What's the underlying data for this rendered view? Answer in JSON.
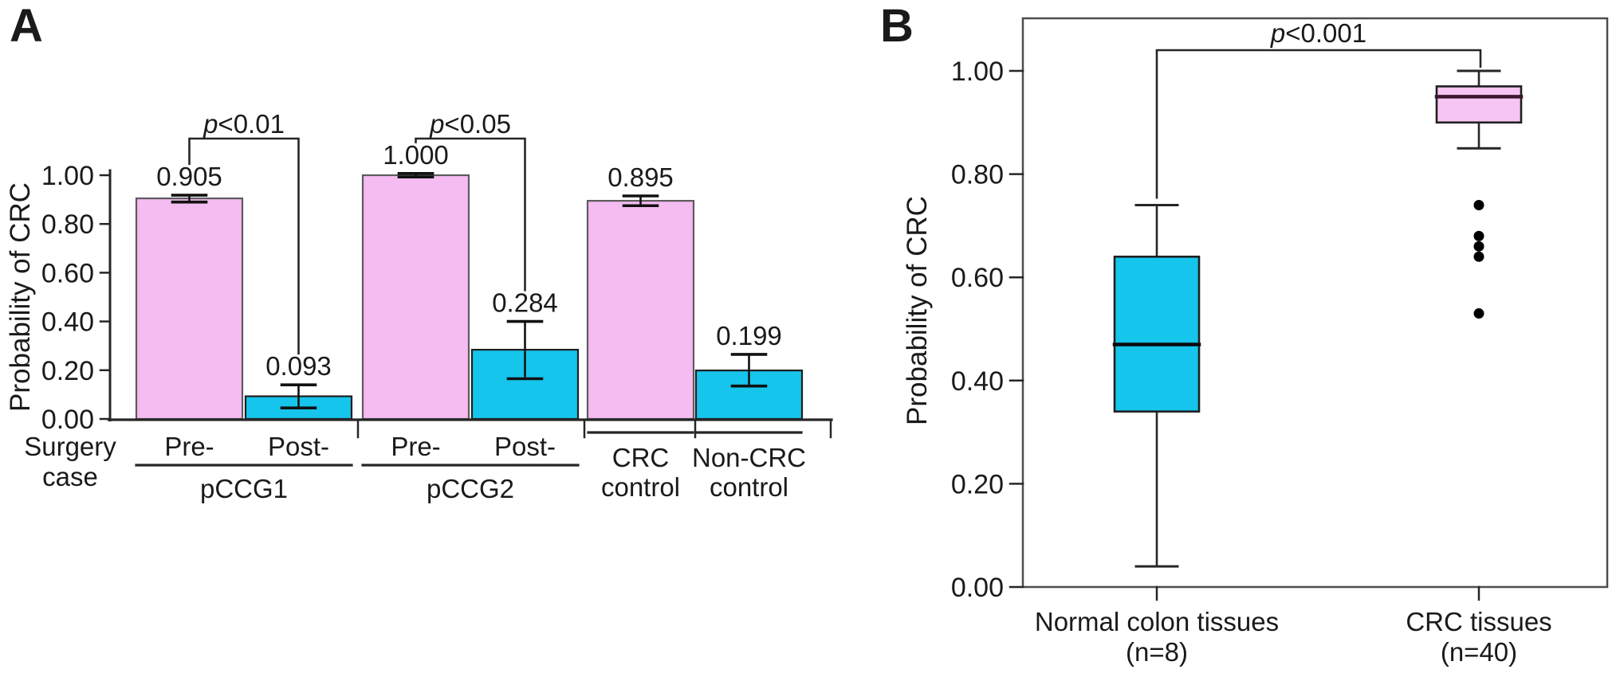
{
  "panel_a": {
    "letter": "A",
    "y_axis_title": "Probability of CRC"
  },
  "panel_b": {
    "letter": "B",
    "y_axis_title": "Probability of CRC"
  },
  "chart_data": [
    {
      "panel": "A",
      "type": "bar",
      "ylabel": "Probability of CRC",
      "ylim": [
        0,
        1.0
      ],
      "ytick_labels": [
        "0.00",
        "0.20",
        "0.40",
        "0.60",
        "0.80",
        "1.00"
      ],
      "categories": [
        "Pre-",
        "Post-",
        "Pre-",
        "Post-",
        "CRC control",
        "Non-CRC control"
      ],
      "values": [
        0.905,
        0.093,
        1.0,
        0.284,
        0.895,
        0.199
      ],
      "value_labels": [
        "0.905",
        "0.093",
        "1.000",
        "0.284",
        "0.895",
        "0.199"
      ],
      "errors": [
        [
          0.89,
          0.918
        ],
        [
          0.045,
          0.14
        ],
        [
          0.993,
          1.007
        ],
        [
          0.165,
          0.4
        ],
        [
          0.875,
          0.915
        ],
        [
          0.135,
          0.265
        ]
      ],
      "bar_colors": [
        "pink",
        "cyan",
        "pink",
        "cyan",
        "pink",
        "cyan"
      ],
      "x_tick_labels": [
        "Pre-",
        "Post-",
        "Pre-",
        "Post-"
      ],
      "groups": [
        {
          "label": "pCCG1",
          "bars": [
            0,
            1
          ]
        },
        {
          "label": "pCCG2",
          "bars": [
            2,
            3
          ]
        }
      ],
      "control_labels": [
        [
          "CRC",
          "control"
        ],
        [
          "Non-CRC",
          "control"
        ]
      ],
      "row_header_lines": [
        "Surgery",
        "case"
      ],
      "significance": [
        {
          "label": "p<0.01",
          "between": [
            0,
            1
          ]
        },
        {
          "label": "p<0.05",
          "between": [
            2,
            3
          ]
        }
      ]
    },
    {
      "panel": "B",
      "type": "box",
      "ylabel": "Probability of CRC",
      "ylim": [
        0,
        1.0
      ],
      "ytick_labels": [
        "0.00",
        "0.20",
        "0.40",
        "0.60",
        "0.80",
        "1.00"
      ],
      "boxes": [
        {
          "label_lines": [
            "Normal colon tissues",
            "(n=8)"
          ],
          "whisker_low": 0.04,
          "q1": 0.34,
          "median": 0.47,
          "q3": 0.64,
          "whisker_high": 0.74,
          "outliers": [],
          "color": "cyan"
        },
        {
          "label_lines": [
            "CRC tissues",
            "(n=40)"
          ],
          "whisker_low": 0.85,
          "q1": 0.9,
          "median": 0.95,
          "q3": 0.97,
          "whisker_high": 1.0,
          "outliers": [
            0.74,
            0.68,
            0.66,
            0.64,
            0.53
          ],
          "color": "pink"
        }
      ],
      "significance": [
        {
          "label": "p<0.001",
          "between": [
            0,
            1
          ]
        }
      ]
    }
  ],
  "colors": {
    "pink_fill": "#F4BCF1",
    "pink_fill_b": "#F6C5F3",
    "cyan_fill": "#16C5EC",
    "pink_border": "#5e5a5e",
    "cyan_border": "#1f1f1f",
    "box_border": "#1f1f1f",
    "pink_median": "#3b1630",
    "cyan_median": "#0a0a0a",
    "axis": "#262626",
    "frame": "#4d4d4d",
    "error_bar": "#111111",
    "outlier": "#000000"
  }
}
